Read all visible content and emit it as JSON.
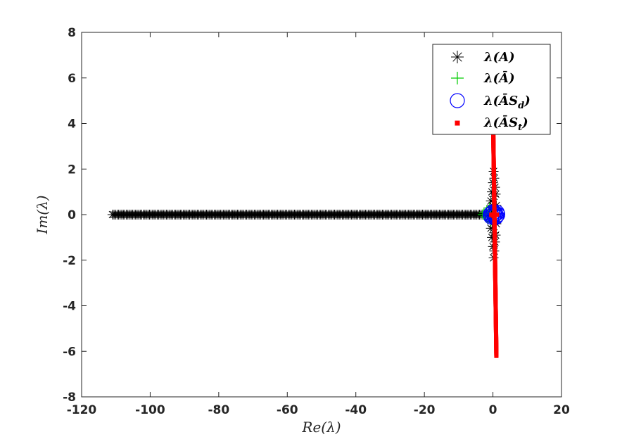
{
  "chart_data": {
    "type": "scatter",
    "xlabel": "Re(λ)",
    "ylabel": "Im(λ)",
    "xlim": [
      -120,
      20
    ],
    "ylim": [
      -8,
      8
    ],
    "xticks": [
      -120,
      -100,
      -80,
      -60,
      -40,
      -20,
      0,
      20
    ],
    "yticks": [
      -8,
      -6,
      -4,
      -2,
      0,
      2,
      4,
      6,
      8
    ],
    "xtick_labels": [
      "-120",
      "-100",
      "-80",
      "-60",
      "-40",
      "-20",
      "0",
      "20"
    ],
    "ytick_labels": [
      "-8",
      "-6",
      "-4",
      "-2",
      "0",
      "2",
      "4",
      "6",
      "8"
    ],
    "grid": false,
    "legend_position": "top-right",
    "series": [
      {
        "name": "λ(A)",
        "marker": "asterisk",
        "color": "#000000",
        "real_axis_range": [
          -111,
          -1
        ],
        "near_origin_points": [
          [
            0.2,
            1.9
          ],
          [
            0.4,
            1.6
          ],
          [
            0.0,
            1.4
          ],
          [
            0.6,
            1.2
          ],
          [
            -0.3,
            1.0
          ],
          [
            0.3,
            0.8
          ],
          [
            -0.6,
            0.6
          ],
          [
            0.8,
            0.9
          ],
          [
            -0.2,
            0.4
          ],
          [
            0.5,
            0.3
          ],
          [
            0.2,
            -1.9
          ],
          [
            0.4,
            -1.6
          ],
          [
            0.0,
            -1.4
          ],
          [
            0.6,
            -1.2
          ],
          [
            -0.3,
            -1.0
          ],
          [
            0.3,
            -0.8
          ],
          [
            -0.6,
            -0.6
          ],
          [
            0.8,
            -0.9
          ],
          [
            -0.2,
            -0.4
          ],
          [
            0.5,
            -0.3
          ],
          [
            1.0,
            0.4
          ],
          [
            1.0,
            -0.4
          ],
          [
            -0.8,
            0.2
          ],
          [
            -0.8,
            -0.2
          ]
        ]
      },
      {
        "name": "λ(Ā)",
        "marker": "plus",
        "color": "#00cc00",
        "points": [
          [
            -3.0,
            0.0
          ],
          [
            -2.6,
            0.1
          ],
          [
            -2.2,
            -0.1
          ],
          [
            -1.8,
            0.2
          ],
          [
            -1.4,
            -0.2
          ],
          [
            -1.0,
            0.3
          ],
          [
            -0.6,
            -0.3
          ],
          [
            -0.2,
            0.35
          ],
          [
            0.2,
            -0.35
          ],
          [
            0.6,
            0.3
          ],
          [
            -1.5,
            0.0
          ],
          [
            -0.8,
            0.0
          ],
          [
            0.0,
            0.0
          ],
          [
            -2.4,
            0.0
          ]
        ]
      },
      {
        "name": "λ(ĀS_d)",
        "marker": "circle",
        "color": "#0000ff",
        "points": [
          [
            -0.6,
            0.0
          ],
          [
            -0.3,
            0.05
          ],
          [
            0.0,
            -0.05
          ],
          [
            0.3,
            0.0
          ],
          [
            0.6,
            0.05
          ],
          [
            0.9,
            -0.05
          ],
          [
            1.2,
            0.0
          ],
          [
            0.15,
            0.1
          ],
          [
            0.75,
            -0.1
          ],
          [
            1.05,
            0.08
          ],
          [
            -0.45,
            -0.08
          ]
        ]
      },
      {
        "name": "λ(ĀS_t)",
        "marker": "square",
        "color": "#ff0000",
        "line": {
          "start": [
            0.1,
            3.6
          ],
          "end": [
            1.0,
            -6.2
          ]
        },
        "extra_points": [
          [
            -0.5,
            0.0
          ],
          [
            0.4,
            0.05
          ],
          [
            1.2,
            0.0
          ],
          [
            0.0,
            -0.05
          ]
        ]
      }
    ]
  },
  "legend": {
    "entries": [
      {
        "label_main": "λ(A)",
        "label_sub": ""
      },
      {
        "label_main": "λ(Ā)",
        "label_sub": ""
      },
      {
        "label_main": "λ(ĀS",
        "label_sub": "d",
        "label_close": ")"
      },
      {
        "label_main": "λ(ĀS",
        "label_sub": "t",
        "label_close": ")"
      }
    ]
  }
}
